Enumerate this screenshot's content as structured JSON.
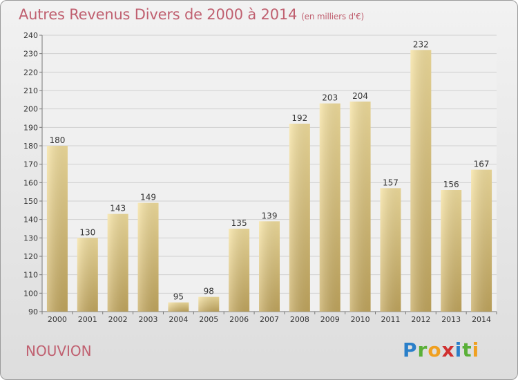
{
  "title": "Autres Revenus Divers de 2000 à 2014",
  "subtitle": "(en milliers d'€)",
  "place": "NOUVION",
  "logo": {
    "text": "Proxiti",
    "letters": [
      {
        "ch": "P",
        "color": "#2a7fc9"
      },
      {
        "ch": "r",
        "color": "#5ab038"
      },
      {
        "ch": "o",
        "color": "#f0a020"
      },
      {
        "ch": "x",
        "color": "#d03030"
      },
      {
        "ch": "i",
        "color": "#2a7fc9"
      },
      {
        "ch": "t",
        "color": "#5ab038"
      },
      {
        "ch": "i",
        "color": "#f0a020"
      }
    ]
  },
  "colors": {
    "bar_top": "#f6e2a0",
    "bar_bottom": "#c6aa60",
    "grid": "#cfcfcf",
    "text": "#333333",
    "accent": "#c06070"
  },
  "chart_data": {
    "type": "bar",
    "categories": [
      "2000",
      "2001",
      "2002",
      "2003",
      "2004",
      "2005",
      "2006",
      "2007",
      "2008",
      "2009",
      "2010",
      "2011",
      "2012",
      "2013",
      "2014"
    ],
    "values": [
      180,
      130,
      143,
      149,
      95,
      98,
      135,
      139,
      192,
      203,
      204,
      157,
      232,
      156,
      167
    ],
    "ylim": [
      90,
      240
    ],
    "yticks": [
      90,
      100,
      110,
      120,
      130,
      140,
      150,
      160,
      170,
      180,
      190,
      200,
      210,
      220,
      230,
      240
    ],
    "grid": true,
    "data_labels": true
  }
}
